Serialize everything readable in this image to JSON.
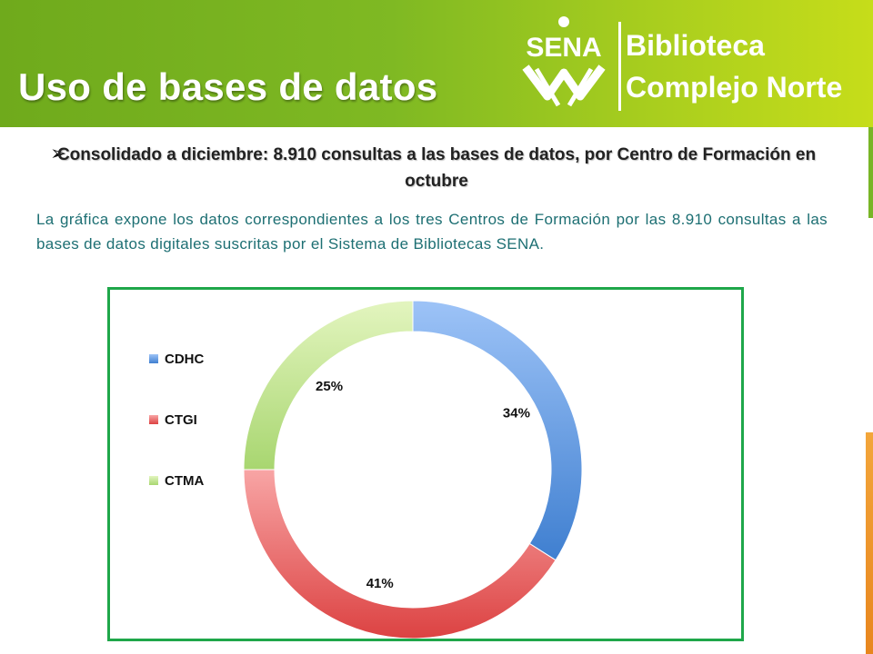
{
  "header": {
    "title": "Uso de bases de datos",
    "logo_text": "SENA",
    "brand_line1": "Biblioteca",
    "brand_line2": "Complejo Norte"
  },
  "subtitle": {
    "bullet": "➢",
    "text": "Consolidado a diciembre: 8.910 consultas a las bases de datos, por Centro de Formación en octubre"
  },
  "description": "La gráfica expone los datos correspondientes a los tres Centros de Formación por las 8.910 consultas a las bases de datos digitales suscritas por el Sistema de Bibliotecas SENA.",
  "colors": {
    "header_green": "#7fb923",
    "frame_green": "#1fa74a",
    "description_teal": "#1d6f73"
  },
  "chart_data": {
    "type": "pie",
    "variant": "doughnut",
    "title": "",
    "legend_position": "left",
    "categories": [
      "CDHC",
      "CTGI",
      "CTMA"
    ],
    "values": [
      34,
      41,
      25
    ],
    "labels": [
      "34%",
      "41%",
      "25%"
    ],
    "colors": [
      [
        "#9dc3f7",
        "#3f7fd0"
      ],
      [
        "#f8a5a5",
        "#dc4242"
      ],
      [
        "#e3f5bf",
        "#a8d670"
      ]
    ]
  }
}
